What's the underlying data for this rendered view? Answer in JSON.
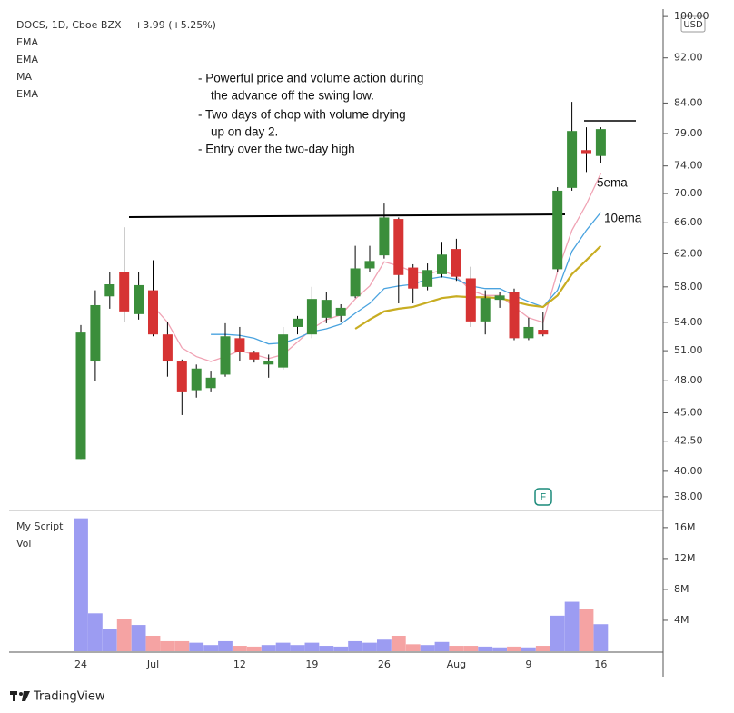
{
  "chart_data": [
    {
      "type": "candlestick",
      "title": "DOCS, 1D, Cboe BZX",
      "subtitle": "+3.99 (+5.25%)",
      "currency": "USD",
      "legend": [
        "EMA",
        "EMA",
        "MA",
        "EMA"
      ],
      "categories": [
        "24",
        null,
        null,
        null,
        null,
        "Jul",
        null,
        null,
        null,
        null,
        null,
        "12",
        null,
        null,
        null,
        null,
        "19",
        null,
        null,
        null,
        null,
        "26",
        null,
        null,
        null,
        null,
        "Aug",
        null,
        null,
        null,
        null,
        "9",
        null,
        null,
        null,
        null,
        "16"
      ],
      "open": [
        41.0,
        49.9,
        56.9,
        59.8,
        54.9,
        57.6,
        52.7,
        49.9,
        47.1,
        47.3,
        48.6,
        52.3,
        50.8,
        49.6,
        49.3,
        53.5,
        52.7,
        54.5,
        54.7,
        56.9,
        60.2,
        61.8,
        66.5,
        60.3,
        58.0,
        59.5,
        62.6,
        59.0,
        54.1,
        56.5,
        57.4,
        52.3,
        53.2,
        60.1,
        70.8,
        76.4,
        75.5
      ],
      "high": [
        53.7,
        57.6,
        59.8,
        65.4,
        59.8,
        61.2,
        54.0,
        50.1,
        49.6,
        48.9,
        53.9,
        53.5,
        51.0,
        50.6,
        53.5,
        54.7,
        58.0,
        57.4,
        56.0,
        63.0,
        63.0,
        68.6,
        66.7,
        60.7,
        60.8,
        63.5,
        63.9,
        60.4,
        57.6,
        57.4,
        57.8,
        54.5,
        55.1,
        70.9,
        84.2,
        80.0,
        80.0
      ],
      "low": [
        41.0,
        48.0,
        55.5,
        54.0,
        54.3,
        52.5,
        48.4,
        44.8,
        46.4,
        46.9,
        48.4,
        49.9,
        49.8,
        48.3,
        49.1,
        52.7,
        52.3,
        53.9,
        54.0,
        56.7,
        59.8,
        61.4,
        56.1,
        56.1,
        57.6,
        59.1,
        58.7,
        53.5,
        52.7,
        55.6,
        52.1,
        52.1,
        52.5,
        59.8,
        70.4,
        73.1,
        74.4
      ],
      "close": [
        52.9,
        55.9,
        58.3,
        55.2,
        58.2,
        52.7,
        49.9,
        46.9,
        49.2,
        48.3,
        52.5,
        50.9,
        50.1,
        49.9,
        52.7,
        54.4,
        56.6,
        56.5,
        55.6,
        60.2,
        61.1,
        66.7,
        59.4,
        57.8,
        60.0,
        61.9,
        59.2,
        54.1,
        56.7,
        57.0,
        52.3,
        53.5,
        52.7,
        70.4,
        79.4,
        75.8,
        79.7
      ],
      "up_color": "#3b8e3b",
      "down_color": "#d63333",
      "series": [
        {
          "color": "#f0a3b4",
          "values": [
            null,
            null,
            null,
            null,
            null,
            55.8,
            54.0,
            51.3,
            50.4,
            49.9,
            50.4,
            51.0,
            50.6,
            50.2,
            50.6,
            51.9,
            53.3,
            54.3,
            54.8,
            56.6,
            58.1,
            61.0,
            60.5,
            59.8,
            59.5,
            60.0,
            59.2,
            57.6,
            57.0,
            57.0,
            55.7,
            54.5,
            54.0,
            59.8,
            65.0,
            68.5,
            72.9
          ]
        },
        {
          "color": "#4aa3df",
          "values": [
            null,
            null,
            null,
            null,
            null,
            null,
            null,
            null,
            null,
            52.7,
            52.7,
            52.6,
            52.3,
            51.7,
            51.8,
            52.3,
            53.0,
            53.3,
            53.8,
            55.0,
            56.1,
            57.8,
            58.1,
            58.3,
            58.9,
            59.2,
            58.9,
            58.1,
            57.8,
            57.8,
            57.0,
            56.3,
            55.7,
            57.6,
            62.3,
            65.0,
            67.4
          ]
        },
        {
          "color": "#c8ad22",
          "values": [
            null,
            null,
            null,
            null,
            null,
            null,
            null,
            null,
            null,
            null,
            null,
            null,
            null,
            null,
            null,
            null,
            null,
            null,
            null,
            53.3,
            54.3,
            55.2,
            55.5,
            55.7,
            56.2,
            56.7,
            56.9,
            56.8,
            56.8,
            56.7,
            56.3,
            55.9,
            55.7,
            57.0,
            59.5,
            61.2,
            63.0
          ]
        }
      ],
      "annotations": [
        "-  Powerful price and volume action during",
        "the advance off the swing low.",
        "-  Two days of chop with volume drying",
        "up on day 2.",
        "-  Entry over the two-day high"
      ],
      "line_labels": [
        "5ema",
        "10ema"
      ],
      "event_badge": "E",
      "log_scale": true,
      "ylim": [
        37.1,
        101.5
      ],
      "yticks": [
        {
          "value": 100,
          "label": "100.00"
        },
        {
          "value": 92,
          "label": "92.00"
        },
        {
          "value": 84,
          "label": "84.00"
        },
        {
          "value": 79,
          "label": "79.00"
        },
        {
          "value": 74,
          "label": "74.00"
        },
        {
          "value": 70,
          "label": "70.00"
        },
        {
          "value": 66,
          "label": "66.00"
        },
        {
          "value": 62,
          "label": "62.00"
        },
        {
          "value": 58,
          "label": "58.00"
        },
        {
          "value": 54,
          "label": "54.00"
        },
        {
          "value": 51,
          "label": "51.00"
        },
        {
          "value": 48,
          "label": "48.00"
        },
        {
          "value": 45,
          "label": "45.00"
        },
        {
          "value": 42.5,
          "label": "42.50"
        },
        {
          "value": 40,
          "label": "40.00"
        },
        {
          "value": 38,
          "label": "38.00"
        }
      ]
    },
    {
      "type": "bar",
      "title": "My Script",
      "subtitle": "Vol",
      "up_color": "#9c9cf2",
      "down_color": "#f5a3a3",
      "values": [
        17200000,
        4900000,
        2900000,
        4200000,
        3400000,
        2000000,
        1300000,
        1300000,
        1100000,
        800000,
        1300000,
        700000,
        600000,
        800000,
        1100000,
        800000,
        1100000,
        700000,
        600000,
        1300000,
        1100000,
        1500000,
        2000000,
        900000,
        800000,
        1200000,
        700000,
        700000,
        600000,
        500000,
        600000,
        500000,
        700000,
        4600000,
        6400000,
        5500000,
        3500000
      ],
      "ylim": [
        0,
        18100000
      ],
      "yticks": [
        {
          "value": 16000000,
          "label": "16M"
        },
        {
          "value": 12000000,
          "label": "12M"
        },
        {
          "value": 8000000,
          "label": "8M"
        },
        {
          "value": 4000000,
          "label": "4M"
        }
      ]
    }
  ],
  "branding": "TradingView"
}
